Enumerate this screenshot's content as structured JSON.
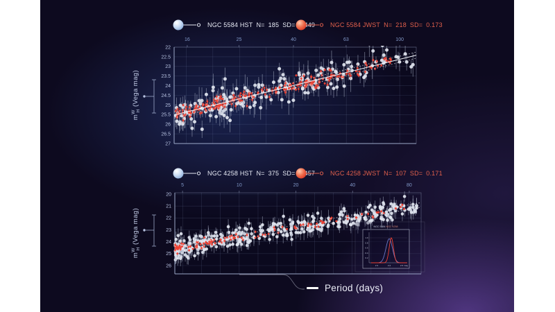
{
  "figure": {
    "period_axis_label": "Period (days)",
    "ylabel": {
      "base": "m",
      "sup": "W",
      "sub": "H",
      "unit": "(Vega mag)"
    }
  },
  "theme": {
    "bg_base": "#0d0a1f",
    "axis": "#aab8d8",
    "grid": "#8fa0c8",
    "tick_text": "#b7c2e0",
    "top_tick_text": "#8299c9",
    "hst_point": "#e2e6f0",
    "hst_err": "#a9b1c6",
    "jwst_point": "#ee4134",
    "jwst_err": "#e05545",
    "hst_text": "#e8ebf5",
    "jwst_text": "#e2604c",
    "fit": "#f7f8fc",
    "inset_blue": "#6b79c8",
    "inset_border": "#c9cfe0",
    "inset_text": "#c6cce0",
    "inset_title_left": "#c9cfe2",
    "inset_title_right": "#d9887b",
    "callout": "#d5dae8"
  },
  "chart_data": {
    "type": "scatter",
    "x_scale": "log",
    "shared_xlabel": "Period (days)",
    "points_estimated": true,
    "plots": [
      {
        "galaxy": "NGC 5584",
        "x_ticks": [
          "16",
          "25",
          "40",
          "63",
          "100"
        ],
        "x_log_range": [
          1.155,
          2.062
        ],
        "grid_log": [
          1.2,
          2.0,
          0.1
        ],
        "y_ticks": [
          "22",
          "22.5",
          "23",
          "23.5",
          "24",
          "24.5",
          "25",
          "25.5",
          "26",
          "26.5",
          "27"
        ],
        "y_range": [
          22,
          27
        ],
        "fit": {
          "intercept": 29.47,
          "slope": -3.42,
          "band": 0.16,
          "solid": true
        },
        "series": [
          {
            "name": "NGC 5584 HST",
            "n_label": "N=",
            "n": "185",
            "sd_label": "SD=",
            "sd": "0.449",
            "kind": "hst",
            "seed": 101,
            "points": 185,
            "log_min": 1.16,
            "log_max": 2.05,
            "skew": 1.25,
            "sd_mag": 0.45,
            "err_min": 0.25,
            "err_max": 0.72,
            "r": 2.5
          },
          {
            "name": "NGC 5584 JWST",
            "n_label": "N=",
            "n": "218",
            "sd_label": "SD=",
            "sd": "0.173",
            "kind": "jwst",
            "seed": 202,
            "points": 218,
            "log_min": 1.16,
            "log_max": 1.97,
            "skew": 1.3,
            "sd_mag": 0.17,
            "err_min": 0.06,
            "err_max": 0.2,
            "r": 1.5
          }
        ]
      },
      {
        "galaxy": "NGC 4258",
        "x_ticks": [
          "5",
          "10",
          "20",
          "40",
          "80"
        ],
        "x_log_range": [
          0.658,
          1.966
        ],
        "grid_log": [
          0.7,
          1.9,
          0.1
        ],
        "y_ticks": [
          "20",
          "21",
          "22",
          "23",
          "24",
          "25",
          "26"
        ],
        "y_range": [
          20,
          26
        ],
        "fit": {
          "intercept": 26.45,
          "slope": -2.82,
          "band": 0.19,
          "solid": false
        },
        "series": [
          {
            "name": "NGC 4258 HST",
            "n_label": "N=",
            "n": "375",
            "sd_label": "SD=",
            "sd": "0.457",
            "kind": "hst",
            "seed": 303,
            "points": 375,
            "log_min": 0.66,
            "log_max": 1.95,
            "skew": 1.45,
            "sd_mag": 0.44,
            "err_min": 0.25,
            "err_max": 0.75,
            "r": 2.3
          },
          {
            "name": "NGC 4258 JWST",
            "n_label": "N=",
            "n": "107",
            "sd_label": "SD=",
            "sd": "0.171",
            "kind": "jwst",
            "seed": 404,
            "points": 107,
            "log_min": 0.66,
            "log_max": 1.88,
            "skew": 1.9,
            "sd_mag": 0.17,
            "err_min": 0.06,
            "err_max": 0.18,
            "r": 1.5
          }
        ]
      }
    ],
    "inset": {
      "title_left": "NGC 5584",
      "title_right": "NGC 4258",
      "x_ticks": [
        "2.3",
        "2.4",
        "2.5"
      ],
      "x_unit": "mag",
      "x_range": [
        2.25,
        2.55
      ],
      "y_ticks": [
        "1.0",
        "0.8",
        "0.6",
        "0.4",
        "0.2"
      ],
      "curves": [
        {
          "name": "NGC 5584 distribution",
          "mu": 2.4,
          "sigma": 0.026,
          "peak": 0.96,
          "color_key": "inset_blue"
        },
        {
          "name": "NGC 4258 distribution",
          "mu": 2.417,
          "sigma": 0.017,
          "peak": 1.0,
          "color_key": "jwst_point"
        }
      ]
    }
  }
}
